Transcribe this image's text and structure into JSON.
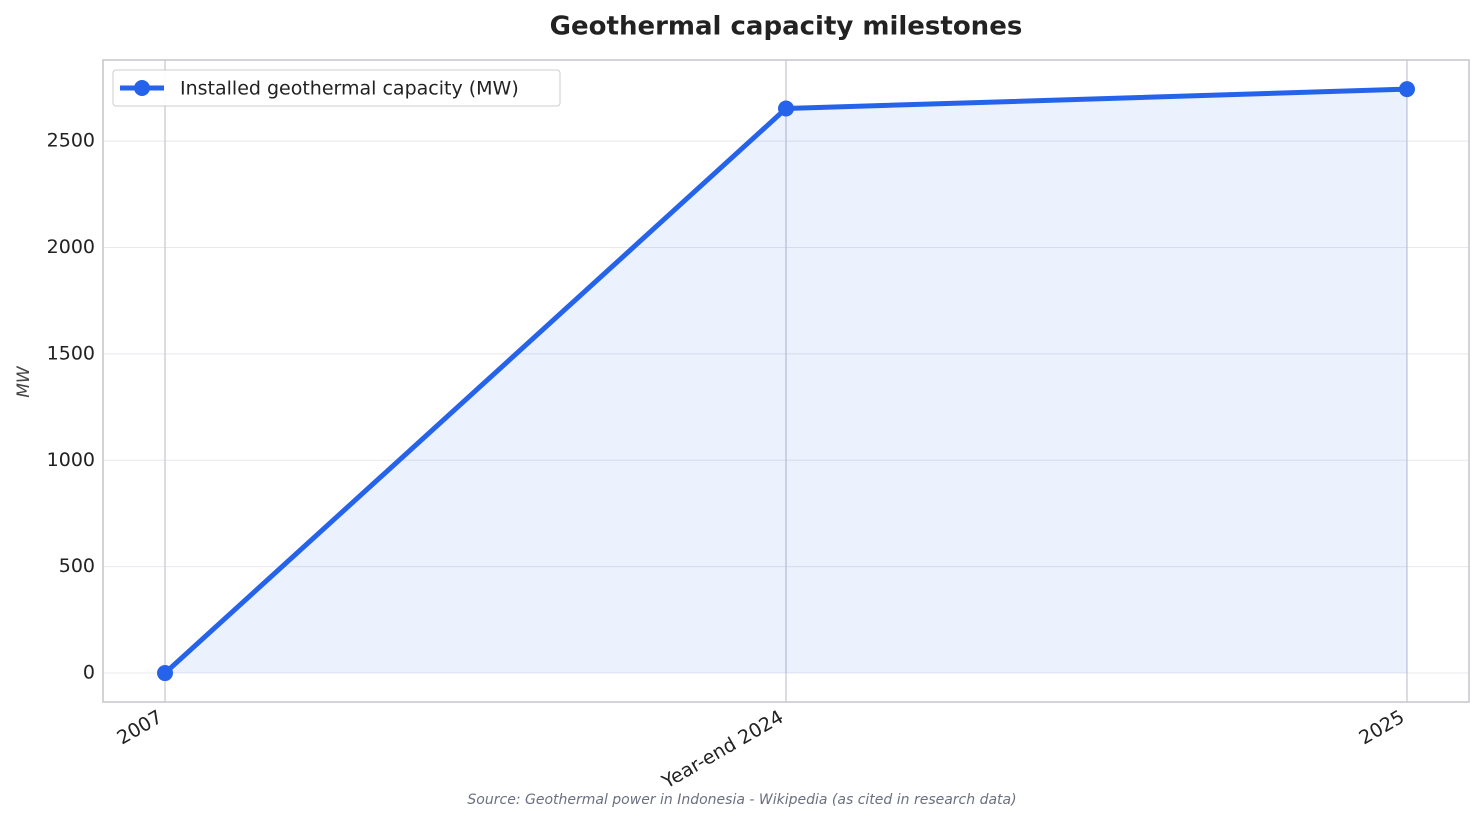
{
  "chart_data": {
    "type": "line",
    "title": "Geothermal capacity milestones",
    "ylabel": "MW",
    "source": "Source: Geothermal power in Indonesia - Wikipedia (as cited in research data)",
    "categories": [
      "2007",
      "Year-end 2024",
      "2025"
    ],
    "series": [
      {
        "name": "Installed geothermal capacity (MW)",
        "color": "#2563eb",
        "values": [
          0,
          2653,
          2744
        ]
      }
    ],
    "ylim": [
      -136,
      2881
    ],
    "yticks": [
      0,
      500,
      1000,
      1500,
      2000,
      2500
    ],
    "grid": true,
    "fill": true,
    "legend": "upper left"
  }
}
